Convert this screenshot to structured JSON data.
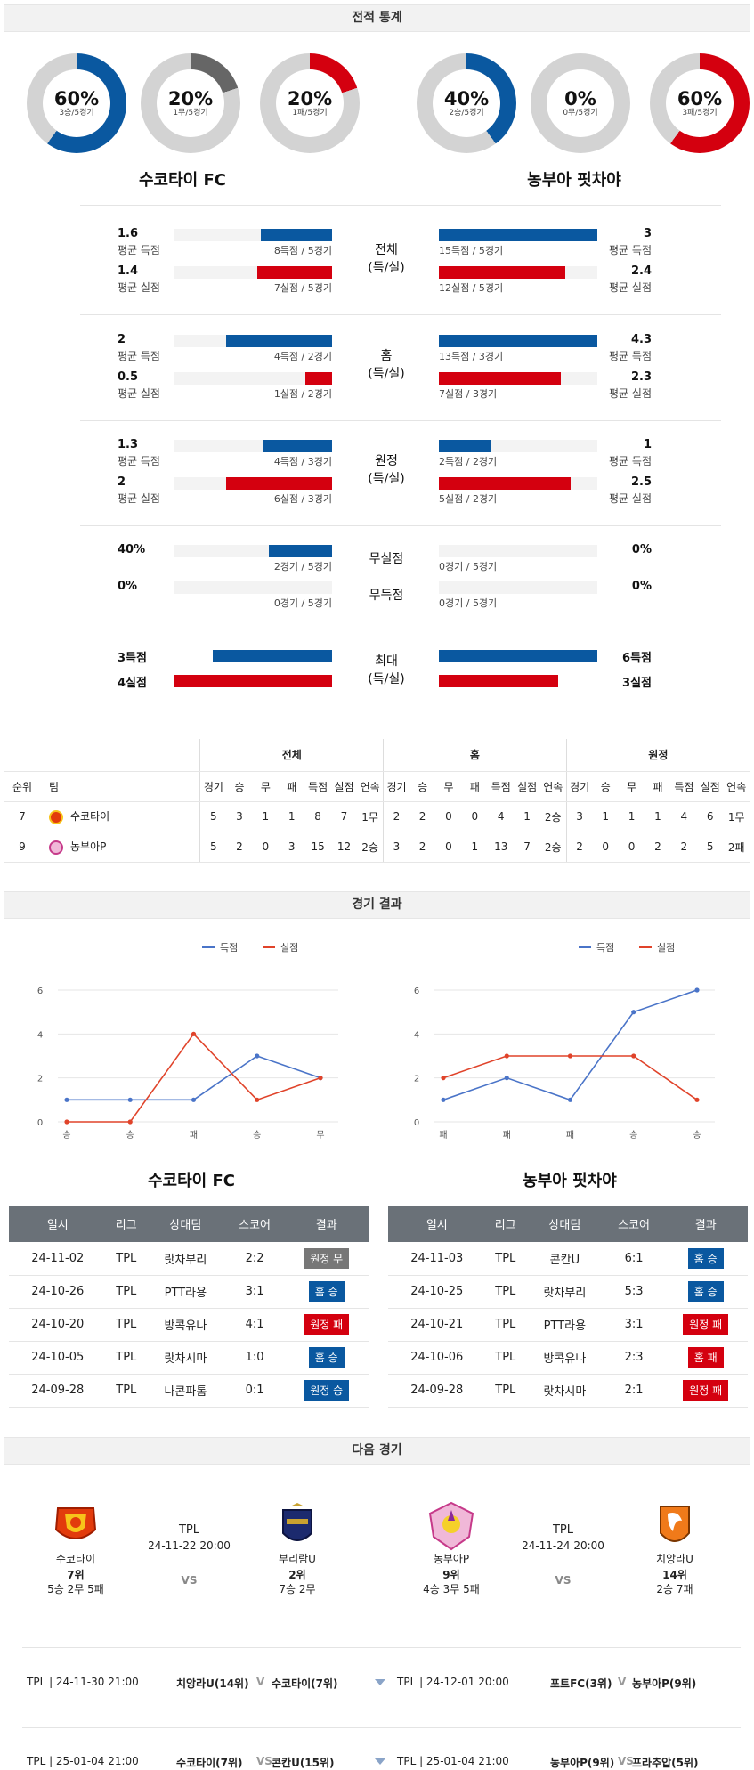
{
  "sections": {
    "stats": "전적 통계",
    "results": "경기 결과",
    "next": "다음 경기"
  },
  "teams": {
    "home": "수코타이 FC",
    "away": "농부아 핏차야"
  },
  "donuts": [
    {
      "pct": "60%",
      "sub": "3승/5경기",
      "color": "#0a58a0",
      "value": 0.6
    },
    {
      "pct": "20%",
      "sub": "1무/5경기",
      "color": "#666666",
      "value": 0.2
    },
    {
      "pct": "20%",
      "sub": "1패/5경기",
      "color": "#d4000f",
      "value": 0.2
    },
    {
      "pct": "40%",
      "sub": "2승/5경기",
      "color": "#0a58a0",
      "value": 0.4
    },
    {
      "pct": "0%",
      "sub": "0무/5경기",
      "color": "#666666",
      "value": 0
    },
    {
      "pct": "60%",
      "sub": "3패/5경기",
      "color": "#d4000f",
      "value": 0.6
    }
  ],
  "stat_groups": [
    {
      "label": "전체\n(득/실)",
      "rows": [
        {
          "l_num": "1.6",
          "l_lbl": "평균 득점",
          "l_cap": "8득점 / 5경기",
          "l_frac": 0.45,
          "r_num": "3",
          "r_lbl": "평균 득점",
          "r_cap": "15득점 / 5경기",
          "r_frac": 1.0,
          "color": "blue"
        },
        {
          "l_num": "1.4",
          "l_lbl": "평균 실점",
          "l_cap": "7실점 / 5경기",
          "l_frac": 0.47,
          "r_num": "2.4",
          "r_lbl": "평균 실점",
          "r_cap": "12실점 / 5경기",
          "r_frac": 0.8,
          "color": "red"
        }
      ]
    },
    {
      "label": "홈\n(득/실)",
      "rows": [
        {
          "l_num": "2",
          "l_lbl": "평균 득점",
          "l_cap": "4득점 / 2경기",
          "l_frac": 0.67,
          "r_num": "4.3",
          "r_lbl": "평균 득점",
          "r_cap": "13득점 / 3경기",
          "r_frac": 1.0,
          "color": "blue"
        },
        {
          "l_num": "0.5",
          "l_lbl": "평균 실점",
          "l_cap": "1실점 / 2경기",
          "l_frac": 0.17,
          "r_num": "2.3",
          "r_lbl": "평균 실점",
          "r_cap": "7실점 / 3경기",
          "r_frac": 0.77,
          "color": "red"
        }
      ]
    },
    {
      "label": "원정\n(득/실)",
      "rows": [
        {
          "l_num": "1.3",
          "l_lbl": "평균 득점",
          "l_cap": "4득점 / 3경기",
          "l_frac": 0.43,
          "r_num": "1",
          "r_lbl": "평균 득점",
          "r_cap": "2득점 / 2경기",
          "r_frac": 0.33,
          "color": "blue"
        },
        {
          "l_num": "2",
          "l_lbl": "평균 실점",
          "l_cap": "6실점 / 3경기",
          "l_frac": 0.67,
          "r_num": "2.5",
          "r_lbl": "평균 실점",
          "r_cap": "5실점 / 2경기",
          "r_frac": 0.83,
          "color": "red"
        }
      ]
    }
  ],
  "clean": [
    {
      "label": "무실점",
      "l_num": "40%",
      "l_cap": "2경기 / 5경기",
      "l_frac": 0.4,
      "r_num": "0%",
      "r_cap": "0경기 / 5경기",
      "r_frac": 0
    },
    {
      "label": "무득점",
      "l_num": "0%",
      "l_cap": "0경기 / 5경기",
      "l_frac": 0,
      "r_num": "0%",
      "r_cap": "0경기 / 5경기",
      "r_frac": 0
    }
  ],
  "max": {
    "label": "최대\n(득/실)",
    "l_score": "3득점",
    "l_concede": "4실점",
    "r_score": "6득점",
    "r_concede": "3실점",
    "l_score_frac": 0.75,
    "l_concede_frac": 1.0,
    "r_score_frac": 1.0,
    "r_concede_frac": 0.75
  },
  "standings": {
    "groups": [
      "전체",
      "홈",
      "원정"
    ],
    "headers": [
      "순위",
      "팀",
      "경기",
      "승",
      "무",
      "패",
      "득점",
      "실점",
      "연속",
      "경기",
      "승",
      "무",
      "패",
      "득점",
      "실점",
      "연속",
      "경기",
      "승",
      "무",
      "패",
      "득점",
      "실점",
      "연속"
    ],
    "rows": [
      [
        "7",
        "수코타이",
        "5",
        "3",
        "1",
        "1",
        "8",
        "7",
        "1무",
        "2",
        "2",
        "0",
        "0",
        "4",
        "1",
        "2승",
        "3",
        "1",
        "1",
        "1",
        "4",
        "6",
        "1무"
      ],
      [
        "9",
        "농부아P",
        "5",
        "2",
        "0",
        "3",
        "15",
        "12",
        "2승",
        "3",
        "2",
        "0",
        "1",
        "13",
        "7",
        "2승",
        "2",
        "0",
        "0",
        "2",
        "2",
        "5",
        "2패"
      ]
    ]
  },
  "legend": {
    "scored": "득점",
    "conceded": "실점"
  },
  "chart_data": [
    {
      "type": "line",
      "title": "",
      "xlabel": "",
      "ylabel": "",
      "x": [
        "승",
        "승",
        "패",
        "승",
        "무"
      ],
      "ylim": [
        0,
        6
      ],
      "yticks": [
        0,
        2,
        4,
        6
      ],
      "series": [
        {
          "name": "득점",
          "color": "#4a74c8",
          "values": [
            1,
            1,
            1,
            3,
            2
          ]
        },
        {
          "name": "실점",
          "color": "#e0432a",
          "values": [
            0,
            0,
            4,
            1,
            2
          ]
        }
      ]
    },
    {
      "type": "line",
      "title": "",
      "xlabel": "",
      "ylabel": "",
      "x": [
        "패",
        "패",
        "패",
        "승",
        "승"
      ],
      "ylim": [
        0,
        6
      ],
      "yticks": [
        0,
        2,
        4,
        6
      ],
      "series": [
        {
          "name": "득점",
          "color": "#4a74c8",
          "values": [
            1,
            2,
            1,
            5,
            6
          ]
        },
        {
          "name": "실점",
          "color": "#e0432a",
          "values": [
            2,
            3,
            3,
            3,
            1
          ]
        }
      ]
    }
  ],
  "results": {
    "headers": [
      "일시",
      "리그",
      "상대팀",
      "스코어",
      "결과"
    ],
    "home": [
      [
        "24-11-02",
        "TPL",
        "랏차부리",
        "2:2",
        "원정 무",
        "#777777"
      ],
      [
        "24-10-26",
        "TPL",
        "PTT라용",
        "3:1",
        "홈 승",
        "#0a58a0"
      ],
      [
        "24-10-20",
        "TPL",
        "방콕유나",
        "4:1",
        "원정 패",
        "#d4000f"
      ],
      [
        "24-10-05",
        "TPL",
        "랏차시마",
        "1:0",
        "홈 승",
        "#0a58a0"
      ],
      [
        "24-09-28",
        "TPL",
        "나콘파톰",
        "0:1",
        "원정 승",
        "#0a58a0"
      ]
    ],
    "away": [
      [
        "24-11-03",
        "TPL",
        "콘칸U",
        "6:1",
        "홈 승",
        "#0a58a0"
      ],
      [
        "24-10-25",
        "TPL",
        "랏차부리",
        "5:3",
        "홈 승",
        "#0a58a0"
      ],
      [
        "24-10-21",
        "TPL",
        "PTT라용",
        "3:1",
        "원정 패",
        "#d4000f"
      ],
      [
        "24-10-06",
        "TPL",
        "방콕유나",
        "2:3",
        "홈 패",
        "#d4000f"
      ],
      [
        "24-09-28",
        "TPL",
        "랏차시마",
        "2:1",
        "원정 패",
        "#d4000f"
      ]
    ]
  },
  "next": {
    "left": {
      "home": "수코타이",
      "league": "TPL",
      "date": "24-11-22 20:00",
      "vs": "VS",
      "away": "부리람U",
      "home_rank": "7위",
      "home_rec": "5승 2무 5패",
      "away_rank": "2위",
      "away_rec": "7승 2무"
    },
    "right": {
      "home": "농부아P",
      "league": "TPL",
      "date": "24-11-24 20:00",
      "vs": "VS",
      "away": "치앙라U",
      "home_rank": "9위",
      "home_rec": "4승 3무 5패",
      "away_rank": "14위",
      "away_rec": "2승 7패"
    }
  },
  "upcoming": [
    {
      "l_info": "TPL | 24-11-30 21:00",
      "l_match": "치앙라U(14위)",
      "l_v": "V",
      "l_match2": "수코타이(7위)",
      "r_info": "TPL | 24-12-01 20:00",
      "r_match": "포트FC(3위)",
      "r_v": "V",
      "r_match2": "농부아P(9위)"
    },
    {
      "l_info": "TPL | 25-01-04 21:00",
      "l_match": "수코타이(7위)",
      "l_v": "VS",
      "l_match2": "콘칸U(15위)",
      "r_info": "TPL | 25-01-04 21:00",
      "r_match": "농부아P(9위)",
      "r_v": "VS",
      "r_match2": "프라추압(5위)"
    }
  ]
}
